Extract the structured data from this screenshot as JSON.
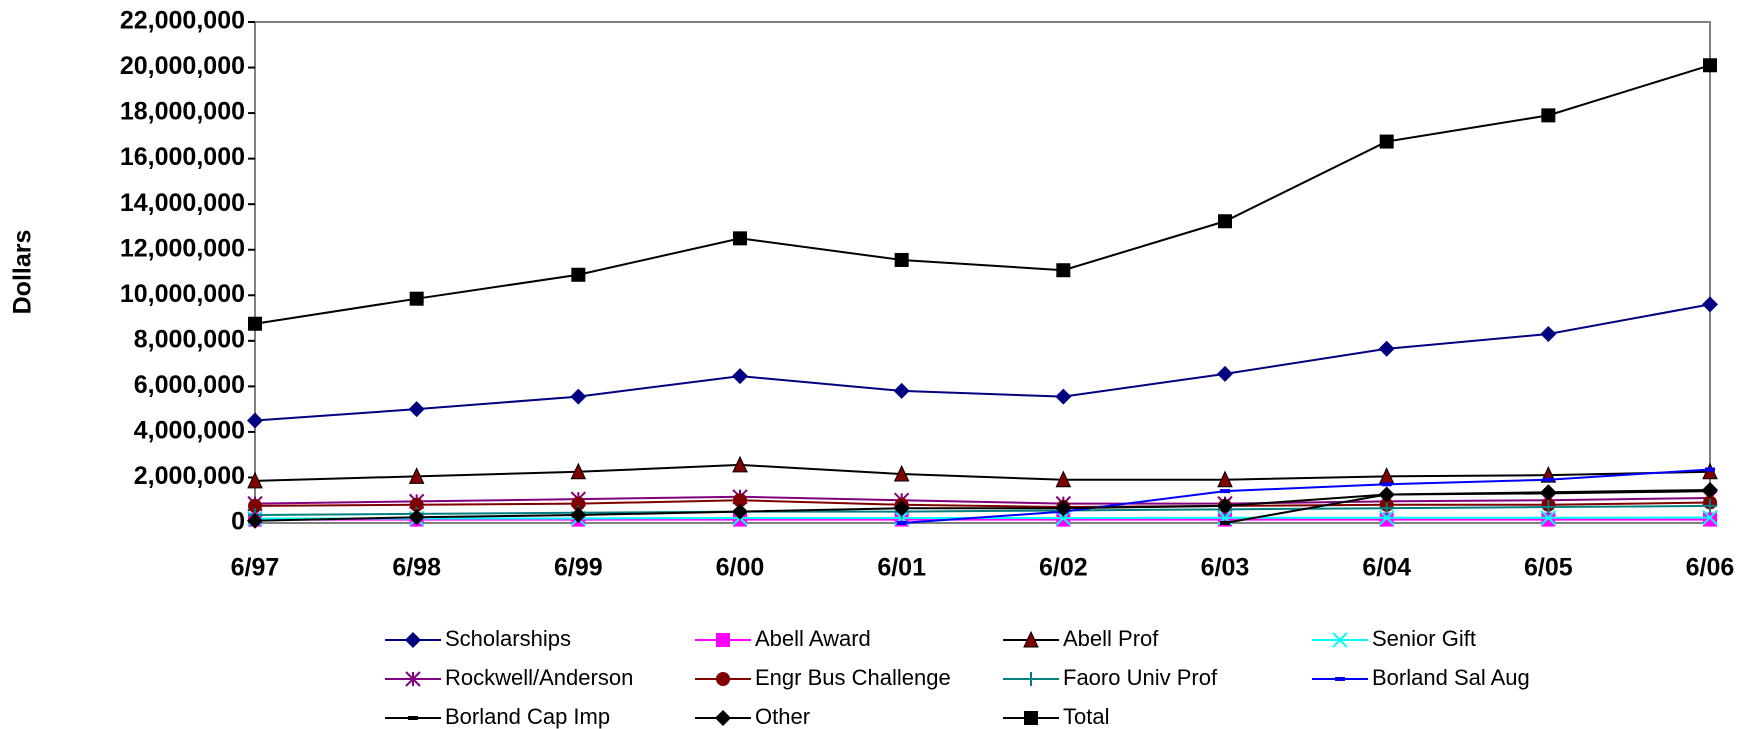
{
  "chart_data": {
    "type": "line",
    "y_label": "Dollars",
    "categories": [
      "6/97",
      "6/98",
      "6/99",
      "6/00",
      "6/01",
      "6/02",
      "6/03",
      "6/04",
      "6/05",
      "6/06"
    ],
    "ylim": [
      0,
      22000000
    ],
    "yticks": [
      {
        "value": 0,
        "label": "0"
      },
      {
        "value": 2000000,
        "label": "2,000,000"
      },
      {
        "value": 4000000,
        "label": "4,000,000"
      },
      {
        "value": 6000000,
        "label": "6,000,000"
      },
      {
        "value": 8000000,
        "label": "8,000,000"
      },
      {
        "value": 10000000,
        "label": "10,000,000"
      },
      {
        "value": 12000000,
        "label": "12,000,000"
      },
      {
        "value": 14000000,
        "label": "14,000,000"
      },
      {
        "value": 16000000,
        "label": "16,000,000"
      },
      {
        "value": 18000000,
        "label": "18,000,000"
      },
      {
        "value": 20000000,
        "label": "20,000,000"
      },
      {
        "value": 22000000,
        "label": "22,000,000"
      }
    ],
    "series": [
      {
        "name": "Scholarships",
        "color": "#000080",
        "marker": "diamond",
        "values": [
          4500000,
          5000000,
          5550000,
          6450000,
          5800000,
          5550000,
          6550000,
          7650000,
          8300000,
          9600000
        ]
      },
      {
        "name": "Abell Award",
        "color": "#ff00ff",
        "marker": "square",
        "values": [
          150000,
          150000,
          150000,
          150000,
          150000,
          150000,
          150000,
          150000,
          150000,
          150000
        ]
      },
      {
        "name": "Abell Prof",
        "color": "#800000",
        "line_color": "#000000",
        "marker": "triangle",
        "values": [
          1850000,
          2050000,
          2250000,
          2550000,
          2150000,
          1900000,
          1900000,
          2050000,
          2100000,
          2250000
        ]
      },
      {
        "name": "Senior Gift",
        "color": "#00ffff",
        "marker": "x",
        "values": [
          200000,
          200000,
          200000,
          220000,
          220000,
          220000,
          230000,
          230000,
          230000,
          240000
        ]
      },
      {
        "name": "Rockwell/Anderson",
        "color": "#800080",
        "marker": "asterisk",
        "values": [
          850000,
          950000,
          1050000,
          1150000,
          1000000,
          850000,
          850000,
          950000,
          1000000,
          1100000
        ]
      },
      {
        "name": "Engr Bus Challenge",
        "color": "#800000",
        "marker": "circle",
        "values": [
          750000,
          800000,
          850000,
          1000000,
          800000,
          700000,
          750000,
          800000,
          800000,
          900000
        ]
      },
      {
        "name": "Faoro Univ Prof",
        "color": "#008080",
        "marker": "plus",
        "values": [
          350000,
          400000,
          450000,
          500000,
          500000,
          550000,
          600000,
          650000,
          700000,
          750000
        ]
      },
      {
        "name": "Borland Sal Aug",
        "color": "#0000ff",
        "marker": "dash",
        "values": [
          null,
          null,
          null,
          null,
          0,
          500000,
          1400000,
          1700000,
          1900000,
          2350000
        ]
      },
      {
        "name": "Borland Cap Imp",
        "color": "#000000",
        "marker": "dash",
        "values": [
          null,
          null,
          null,
          null,
          null,
          null,
          0,
          1250000,
          1300000,
          1400000
        ]
      },
      {
        "name": "Other",
        "color": "#000000",
        "marker": "diamond",
        "values": [
          100000,
          250000,
          350000,
          500000,
          650000,
          650000,
          750000,
          1250000,
          1350000,
          1450000
        ]
      },
      {
        "name": "Total",
        "color": "#000000",
        "marker": "square",
        "values": [
          8750000,
          9850000,
          10900000,
          12500000,
          11550000,
          11100000,
          13250000,
          16750000,
          17900000,
          20100000
        ]
      }
    ]
  }
}
